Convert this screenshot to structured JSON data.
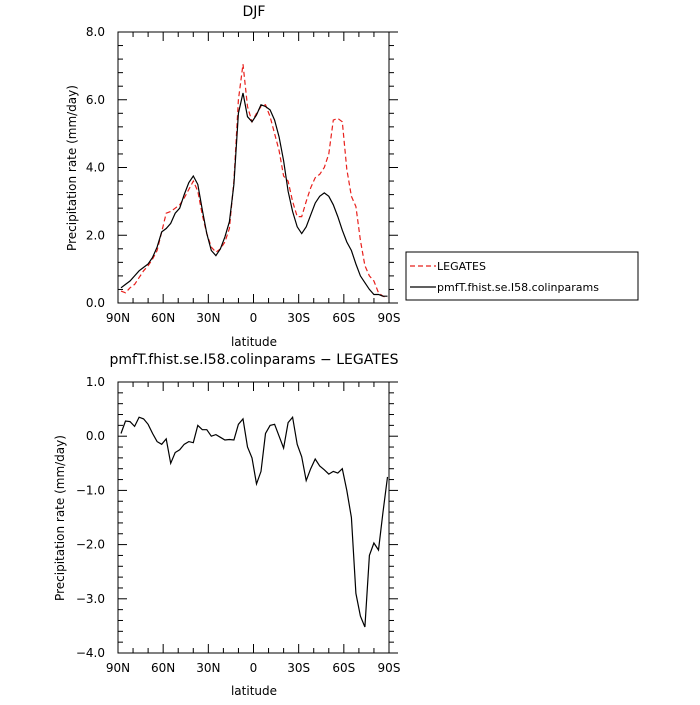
{
  "chart_data": [
    {
      "type": "line",
      "title": "DJF",
      "xlabel": "latitude",
      "ylabel": "Precipitation rate (mm/day)",
      "xlim": [
        90,
        -90
      ],
      "ylim": [
        0,
        8
      ],
      "x_ticks": [
        90,
        60,
        30,
        0,
        -30,
        -60,
        -90
      ],
      "x_tick_labels": [
        "90N",
        "60N",
        "30N",
        "0",
        "30S",
        "60S",
        "90S"
      ],
      "y_ticks": [
        0,
        2,
        4,
        6,
        8
      ],
      "y_tick_labels": [
        "0.0",
        "2.0",
        "4.0",
        "6.0",
        "8.0"
      ],
      "legend": "right",
      "x": [
        88,
        85,
        82,
        79,
        76,
        73,
        70,
        67,
        64,
        61,
        58,
        55,
        52,
        49,
        46,
        43,
        40,
        37,
        34,
        31,
        28,
        25,
        22,
        19,
        16,
        13,
        10,
        7,
        4,
        1,
        -2,
        -5,
        -8,
        -11,
        -14,
        -17,
        -20,
        -23,
        -26,
        -29,
        -32,
        -35,
        -38,
        -41,
        -44,
        -47,
        -50,
        -53,
        -56,
        -59,
        -62,
        -65,
        -68,
        -71,
        -74,
        -77,
        -80,
        -83,
        -86,
        -89
      ],
      "series": [
        {
          "name": "LEGATES",
          "color": "#e8201c",
          "dash": true,
          "values": [
            0.35,
            0.3,
            0.45,
            0.55,
            0.75,
            0.95,
            1.1,
            1.3,
            1.55,
            2.1,
            2.65,
            2.7,
            2.8,
            2.9,
            3.1,
            3.35,
            3.6,
            3.3,
            2.6,
            2.05,
            1.65,
            1.5,
            1.6,
            1.8,
            2.2,
            3.6,
            6.0,
            7.05,
            5.8,
            5.35,
            5.6,
            5.8,
            5.85,
            5.5,
            5.0,
            4.5,
            3.75,
            3.6,
            3.0,
            2.55,
            2.55,
            3.0,
            3.4,
            3.7,
            3.8,
            4.0,
            4.4,
            5.4,
            5.45,
            5.35,
            3.95,
            3.15,
            2.85,
            1.85,
            1.1,
            0.8,
            0.65,
            0.3,
            0.2,
            0.15
          ]
        },
        {
          "name": "pmfT.fhist.se.I58.colinparams",
          "color": "#000000",
          "dash": false,
          "values": [
            0.45,
            0.55,
            0.65,
            0.8,
            0.95,
            1.05,
            1.15,
            1.35,
            1.65,
            2.1,
            2.2,
            2.35,
            2.65,
            2.8,
            3.2,
            3.55,
            3.75,
            3.5,
            2.75,
            2.05,
            1.55,
            1.4,
            1.6,
            1.95,
            2.4,
            3.5,
            5.6,
            6.2,
            5.5,
            5.35,
            5.55,
            5.85,
            5.8,
            5.7,
            5.4,
            4.9,
            4.2,
            3.3,
            2.7,
            2.25,
            2.05,
            2.25,
            2.6,
            2.95,
            3.15,
            3.25,
            3.15,
            2.9,
            2.55,
            2.15,
            1.8,
            1.55,
            1.15,
            0.8,
            0.6,
            0.4,
            0.25,
            0.25,
            0.2,
            0.2
          ]
        }
      ]
    },
    {
      "type": "line",
      "title": "pmfT.fhist.se.I58.colinparams − LEGATES",
      "xlabel": "latitude",
      "ylabel": "Precipitation rate (mm/day)",
      "xlim": [
        90,
        -90
      ],
      "ylim": [
        -4,
        1
      ],
      "x_ticks": [
        90,
        60,
        30,
        0,
        -30,
        -60,
        -90
      ],
      "x_tick_labels": [
        "90N",
        "60N",
        "30N",
        "0",
        "30S",
        "60S",
        "90S"
      ],
      "y_ticks": [
        -4,
        -3,
        -2,
        -1,
        0,
        1
      ],
      "y_tick_labels": [
        "−4.0",
        "−3.0",
        "−2.0",
        "−1.0",
        "0.0",
        "1.0"
      ],
      "x": [
        88,
        85,
        82,
        79,
        76,
        73,
        70,
        67,
        64,
        61,
        58,
        55,
        52,
        49,
        46,
        43,
        40,
        37,
        34,
        31,
        28,
        25,
        22,
        19,
        16,
        13,
        10,
        7,
        4,
        1,
        -2,
        -5,
        -8,
        -11,
        -14,
        -17,
        -20,
        -23,
        -26,
        -29,
        -32,
        -35,
        -38,
        -41,
        -44,
        -47,
        -50,
        -53,
        -56,
        -59,
        -62,
        -65,
        -68,
        -71,
        -74,
        -77,
        -80,
        -83,
        -86,
        -89
      ],
      "series": [
        {
          "color": "#000000",
          "dash": false,
          "values": [
            0.05,
            0.28,
            0.27,
            0.18,
            0.35,
            0.32,
            0.22,
            0.05,
            -0.1,
            -0.15,
            -0.05,
            -0.5,
            -0.3,
            -0.25,
            -0.15,
            -0.1,
            -0.12,
            0.2,
            0.12,
            0.12,
            0.0,
            0.03,
            -0.02,
            -0.07,
            -0.06,
            -0.07,
            0.22,
            0.32,
            -0.2,
            -0.4,
            -0.88,
            -0.65,
            0.05,
            0.2,
            0.22,
            0.0,
            -0.22,
            0.25,
            0.35,
            -0.15,
            -0.38,
            -0.82,
            -0.6,
            -0.42,
            -0.55,
            -0.62,
            -0.7,
            -0.65,
            -0.68,
            -0.6,
            -1.0,
            -1.5,
            -2.9,
            -3.32,
            -3.52,
            -2.2,
            -1.97,
            -2.1,
            -1.4,
            -0.75
          ]
        }
      ]
    }
  ]
}
